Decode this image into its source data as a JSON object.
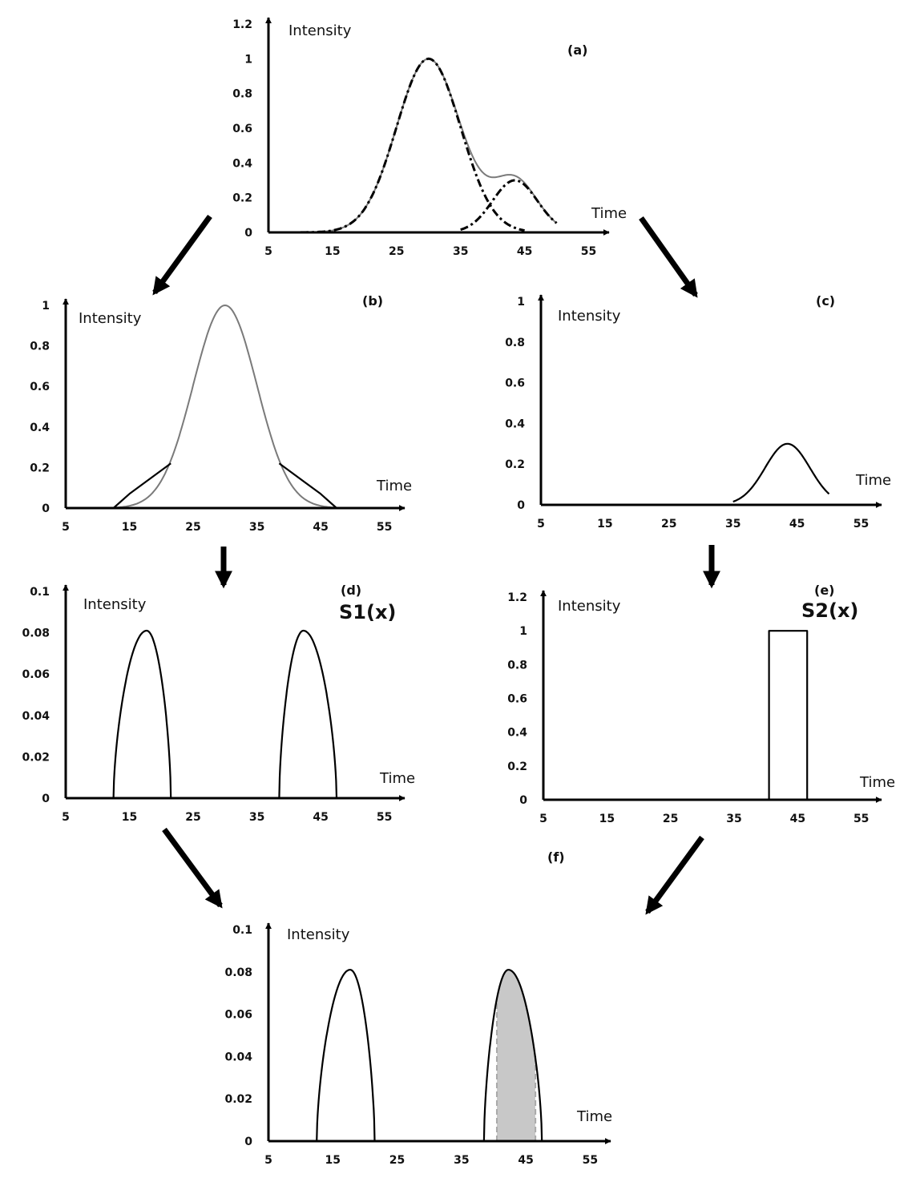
{
  "figure": {
    "colors": {
      "ink": "#000000",
      "gray_curve": "#7a7a7a",
      "shade": "#c8c8c8",
      "dashed": "#a9a9a9"
    },
    "flow_arrows": [
      "a-to-b",
      "a-to-c",
      "b-to-d",
      "c-to-e",
      "d-to-f",
      "e-to-f"
    ]
  },
  "chart_data": [
    {
      "id": "a",
      "panel_label": "(a)",
      "type": "line",
      "xlabel": "Time",
      "ylabel": "Intensity",
      "xlim": [
        5,
        55
      ],
      "ylim": [
        0,
        1.2
      ],
      "xticks": [
        "5",
        "15",
        "25",
        "35",
        "45",
        "55"
      ],
      "yticks": [
        "0",
        "0.2",
        "0.4",
        "0.6",
        "0.8",
        "1",
        "1.2"
      ],
      "grid": false,
      "series": [
        {
          "style": "solid-gray",
          "kind": "sum",
          "components": [
            [
              1,
              30,
              5
            ],
            [
              0.3,
              43.5,
              3.5
            ]
          ],
          "range": [
            10,
            50
          ]
        },
        {
          "style": "dash-dot",
          "kind": "gauss",
          "amp": 1,
          "mu": 30,
          "sigma": 5,
          "range": [
            10,
            45
          ]
        },
        {
          "style": "dash-dot",
          "kind": "gauss",
          "amp": 0.3,
          "mu": 43.5,
          "sigma": 3.5,
          "range": [
            35,
            50
          ]
        }
      ]
    },
    {
      "id": "b",
      "panel_label": "(b)",
      "type": "line",
      "xlabel": "Time",
      "ylabel": "Intensity",
      "xlim": [
        5,
        55
      ],
      "ylim": [
        0,
        1
      ],
      "xticks": [
        "5",
        "15",
        "25",
        "35",
        "45",
        "55"
      ],
      "yticks": [
        "0",
        "0.2",
        "0.4",
        "0.6",
        "0.8",
        "1"
      ],
      "grid": false,
      "series": [
        {
          "style": "solid-gray",
          "kind": "gauss",
          "amp": 1,
          "mu": 30,
          "sigma": 5,
          "range": [
            10,
            50
          ]
        },
        {
          "style": "solid-black",
          "kind": "points",
          "points": [
            [
              12.5,
              0
            ],
            [
              15,
              0.07
            ],
            [
              21.5,
              0.22
            ]
          ]
        },
        {
          "style": "solid-black",
          "kind": "points",
          "points": [
            [
              38.5,
              0.22
            ],
            [
              45,
              0.07
            ],
            [
              47.5,
              0
            ]
          ]
        }
      ]
    },
    {
      "id": "c",
      "panel_label": "(c)",
      "type": "line",
      "xlabel": "Time",
      "ylabel": "Intensity",
      "xlim": [
        5,
        55
      ],
      "ylim": [
        0,
        1
      ],
      "xticks": [
        "5",
        "15",
        "25",
        "35",
        "45",
        "55"
      ],
      "yticks": [
        "0",
        "0.2",
        "0.4",
        "0.6",
        "0.8",
        "1"
      ],
      "grid": false,
      "series": [
        {
          "style": "solid-black",
          "kind": "gauss",
          "amp": 0.3,
          "mu": 43.5,
          "sigma": 3.5,
          "range": [
            35,
            50
          ]
        }
      ]
    },
    {
      "id": "d",
      "panel_label": "(d)",
      "formula": "S1(x)",
      "type": "line",
      "xlabel": "Time",
      "ylabel": "Intensity",
      "xlim": [
        5,
        55
      ],
      "ylim": [
        0,
        0.1
      ],
      "xticks": [
        "5",
        "15",
        "25",
        "35",
        "45",
        "55"
      ],
      "yticks": [
        "0",
        "0.02",
        "0.04",
        "0.06",
        "0.08",
        "0.1"
      ],
      "grid": false,
      "series": [
        {
          "style": "solid-black",
          "kind": "bump",
          "x0": 12.5,
          "x1": 21.5,
          "peak_x": 17.7,
          "peak": 0.081
        },
        {
          "style": "solid-black",
          "kind": "bump",
          "x0": 38.5,
          "x1": 47.5,
          "peak_x": 42.3,
          "peak": 0.081
        }
      ]
    },
    {
      "id": "e",
      "panel_label": "(e)",
      "formula": "S2(x)",
      "type": "line",
      "xlabel": "Time",
      "ylabel": "Intensity",
      "xlim": [
        5,
        55
      ],
      "ylim": [
        0,
        1.2
      ],
      "xticks": [
        "5",
        "15",
        "25",
        "35",
        "45",
        "55"
      ],
      "yticks": [
        "0",
        "0.2",
        "0.4",
        "0.6",
        "0.8",
        "1",
        "1.2"
      ],
      "grid": false,
      "series": [
        {
          "style": "solid-black",
          "kind": "points",
          "points": [
            [
              40.5,
              0
            ],
            [
              40.5,
              1
            ],
            [
              46.5,
              1
            ],
            [
              46.5,
              0
            ]
          ]
        }
      ]
    },
    {
      "id": "f",
      "panel_label": "(f)",
      "type": "area",
      "xlabel": "Time",
      "ylabel": "Intensity",
      "xlim": [
        5,
        55
      ],
      "ylim": [
        0,
        0.1
      ],
      "xticks": [
        "5",
        "15",
        "25",
        "35",
        "45",
        "55"
      ],
      "yticks": [
        "0",
        "0.02",
        "0.04",
        "0.06",
        "0.08",
        "0.1"
      ],
      "grid": false,
      "shaded": {
        "x0": 40.5,
        "x1": 46.5,
        "under": 1
      },
      "series": [
        {
          "style": "solid-black",
          "kind": "bump",
          "x0": 12.5,
          "x1": 21.5,
          "peak_x": 17.7,
          "peak": 0.081
        },
        {
          "style": "solid-black",
          "kind": "bump",
          "x0": 38.5,
          "x1": 47.5,
          "peak_x": 42.3,
          "peak": 0.081
        }
      ]
    }
  ]
}
